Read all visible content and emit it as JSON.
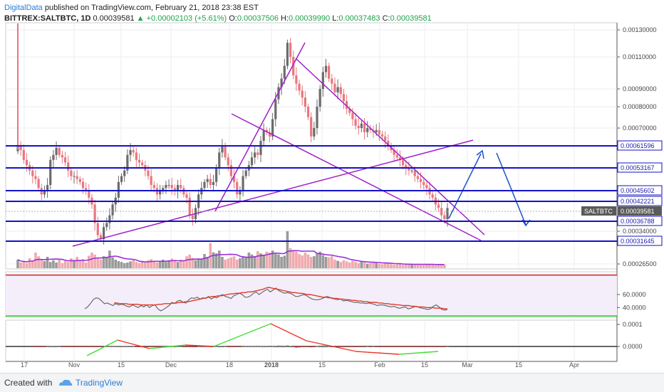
{
  "header": {
    "line1_brand": "DigitalData",
    "line1_rest": "published on TradingView.com, February 21, 2018 23:38 EST",
    "symbol": "BITTREX:SALTBTC, 1D",
    "last": "0.00039581",
    "change": "▲ +0.00002103 (+5.61%)",
    "o_label": "O:",
    "o_value": "0.00037506",
    "h_label": "H:",
    "h_value": "0.00039990",
    "l_label": "L:",
    "l_value": "0.00037483",
    "c_label": "C:",
    "c_value": "0.00039581"
  },
  "footer": {
    "created_with": "Created with",
    "brand": "TradingView"
  },
  "colors": {
    "up": "#6b6b6b",
    "down": "#e8767e",
    "level": "#1212c8",
    "wedge": "#a020c8",
    "arrow": "#1e50c8",
    "rsi": "#6a6a6a",
    "rsi_ma": "#e03a2a",
    "rsi_upper": "#cc2222",
    "rsi_lower": "#22cc22",
    "vol_ma": "#9b30d8"
  },
  "chart_data": [
    {
      "type": "candlestick",
      "title": "",
      "price_axis_ticks": [
        "0.00130000",
        "0.00110000",
        "0.00090000",
        "0.00080000",
        "0.00070000",
        "0.00034000",
        "0.00026500"
      ],
      "x_ticks": [
        "17",
        "Nov",
        "15",
        "Dec",
        "18",
        "2018",
        "15",
        "Feb",
        "15",
        "Mar",
        "15",
        "Apr"
      ],
      "horizontal_levels": [
        "0.00061596",
        "0.00053167",
        "0.00045602",
        "0.00042221",
        "0.00036788",
        "0.00031645"
      ],
      "last_price_label": "SALTBTC",
      "last_price": "0.00039581",
      "ylim": [
        0.00025,
        0.00135
      ],
      "closes": [
        0.00062,
        0.0006,
        0.00056,
        0.00054,
        0.00052,
        0.0005,
        0.00049,
        0.00046,
        0.00044,
        0.00045,
        0.00047,
        0.00056,
        0.00058,
        0.00061,
        0.00058,
        0.00057,
        0.00055,
        0.00052,
        0.0005,
        0.0005,
        0.00049,
        0.00048,
        0.00046,
        0.00045,
        0.00043,
        0.00041,
        0.00036,
        0.00033,
        0.00032,
        0.00035,
        0.00036,
        0.00038,
        0.00041,
        0.00043,
        0.00048,
        0.0005,
        0.00052,
        0.00058,
        0.0006,
        0.00059,
        0.00056,
        0.00055,
        0.00054,
        0.00052,
        0.0005,
        0.00047,
        0.00046,
        0.00044,
        0.00045,
        0.00046,
        0.00047,
        0.00047,
        0.00046,
        0.00045,
        0.00047,
        0.00046,
        0.00044,
        0.00043,
        0.00038,
        0.00037,
        0.0004,
        0.00044,
        0.00046,
        0.00048,
        0.00049,
        0.00047,
        0.00048,
        0.00053,
        0.00059,
        0.00062,
        0.00057,
        0.00054,
        0.0005,
        0.00048,
        0.00044,
        0.00045,
        0.0005,
        0.00052,
        0.00054,
        0.00057,
        0.00059,
        0.00058,
        0.00064,
        0.00069,
        0.00068,
        0.00066,
        0.00074,
        0.00084,
        0.00091,
        0.00096,
        0.00104,
        0.0012,
        0.0011,
        0.00098,
        0.00093,
        0.00089,
        0.00085,
        0.0008,
        0.00075,
        0.00066,
        0.0007,
        0.0008,
        0.0009,
        0.001,
        0.00104,
        0.00096,
        0.00093,
        0.00088,
        0.00091,
        0.00087,
        0.00083,
        0.00079,
        0.00077,
        0.00074,
        0.00071,
        0.0007,
        0.00072,
        0.00068,
        0.0007,
        0.00069,
        0.00068,
        0.00069,
        0.00067,
        0.00066,
        0.00064,
        0.00062,
        0.0006,
        0.00058,
        0.00057,
        0.00056,
        0.00054,
        0.00053,
        0.00052,
        0.00052,
        0.0005,
        0.00049,
        0.00048,
        0.00047,
        0.00046,
        0.00044,
        0.00043,
        0.00041,
        0.0004,
        0.00038,
        0.00037,
        0.0004
      ],
      "volume_relative": [
        0.3,
        0.2,
        0.22,
        0.18,
        0.35,
        0.25,
        0.55,
        0.42,
        0.3,
        0.25,
        0.4,
        0.22,
        0.28,
        0.2,
        0.3,
        0.18,
        0.25,
        0.22,
        0.35,
        0.28,
        0.4,
        0.26,
        0.32,
        0.2,
        0.44,
        0.55,
        0.48,
        0.35,
        0.3,
        0.42,
        0.4,
        0.62,
        0.38,
        0.3,
        0.25,
        0.22,
        0.18,
        0.2,
        0.24,
        0.28,
        0.22,
        0.18,
        0.26,
        0.2,
        0.28,
        0.32,
        0.25,
        0.2,
        0.24,
        0.3,
        0.22,
        0.28,
        0.34,
        0.26,
        0.22,
        0.3,
        0.26,
        0.42,
        0.48,
        0.36,
        0.28,
        0.3,
        0.32,
        0.5,
        0.4,
        0.88,
        0.56,
        0.52,
        0.62,
        0.4,
        0.3,
        0.34,
        0.38,
        0.42,
        0.3,
        0.35,
        0.4,
        0.38,
        0.55,
        0.48,
        0.42,
        0.6,
        0.52,
        0.48,
        0.58,
        0.55,
        0.62,
        0.5,
        0.48,
        0.4,
        0.44,
        1.3,
        0.7,
        0.6,
        0.58,
        0.5,
        0.45,
        0.55,
        0.48,
        0.4,
        0.42,
        0.52,
        0.58,
        0.46,
        0.4,
        0.38,
        0.42,
        0.3,
        0.26,
        0.22,
        0.28,
        0.24,
        0.2,
        0.26,
        0.22,
        0.18,
        0.24,
        0.2,
        0.16,
        0.18,
        0.22,
        0.18,
        0.16,
        0.14,
        0.18,
        0.16,
        0.14,
        0.12,
        0.14,
        0.16,
        0.12,
        0.14,
        0.13,
        0.12,
        0.14,
        0.16,
        0.14,
        0.12,
        0.13,
        0.14,
        0.12,
        0.1,
        0.12,
        0.14,
        0.12
      ]
    },
    {
      "type": "line",
      "title": "",
      "y_ticks": [
        "60.0000",
        "40.0000"
      ],
      "ylim": [
        25,
        95
      ],
      "upper_band": 90,
      "lower_band": 27,
      "series": [
        {
          "values": [
            38,
            41,
            46,
            52,
            55,
            54,
            50,
            46,
            47,
            45,
            43,
            46,
            44,
            45,
            44,
            42,
            41,
            44,
            42,
            40,
            43,
            41,
            44,
            40,
            43,
            44,
            38,
            35,
            37,
            40,
            43,
            48,
            46,
            50,
            51,
            48,
            47,
            52,
            55,
            54,
            56,
            53,
            55,
            54,
            57,
            53,
            56,
            55,
            58,
            60,
            57,
            56,
            54,
            58,
            60,
            62,
            60,
            56,
            56,
            58,
            62,
            64,
            60,
            63,
            66,
            68,
            64,
            67,
            70,
            66,
            64,
            62,
            63,
            62,
            60,
            57,
            57,
            59,
            60,
            58,
            55,
            53,
            52,
            52,
            53,
            55,
            57,
            56,
            54,
            53,
            52,
            53,
            50,
            51,
            50,
            49,
            48,
            48,
            47,
            47,
            46,
            47,
            46,
            45,
            43,
            44,
            44,
            43,
            42,
            41,
            42,
            40,
            39,
            40,
            41,
            38,
            39,
            41,
            42,
            40,
            39,
            38,
            37,
            38,
            42,
            44,
            41,
            37,
            36,
            37
          ]
        },
        {
          "values": [
            47,
            47,
            46,
            46,
            46,
            45,
            45,
            45,
            45,
            44,
            44,
            44,
            44,
            44,
            44,
            45,
            45,
            46,
            46,
            46,
            47,
            47,
            48,
            48,
            49,
            49,
            50,
            51,
            52,
            53,
            54,
            55,
            56,
            57,
            57,
            58,
            58,
            59,
            60,
            61,
            61,
            62,
            62,
            63,
            63,
            64,
            64,
            65,
            66,
            67,
            68,
            70,
            71,
            70,
            69,
            68,
            67,
            66,
            65,
            64,
            63,
            63,
            62,
            62,
            61,
            60,
            60,
            59,
            58,
            57,
            56,
            56,
            55,
            55,
            54,
            54,
            53,
            53,
            52,
            52,
            51,
            51,
            50,
            50,
            49,
            49,
            48,
            48,
            48,
            47,
            47,
            46,
            46,
            45,
            45,
            44,
            44,
            43,
            43,
            43,
            42,
            42,
            41,
            41,
            41,
            40,
            40,
            40,
            39,
            39,
            39,
            38,
            38
          ]
        }
      ]
    },
    {
      "type": "histogram",
      "title": "",
      "y_ticks": [
        "0.0001",
        "0.0000"
      ],
      "zero_line": 0
    }
  ]
}
